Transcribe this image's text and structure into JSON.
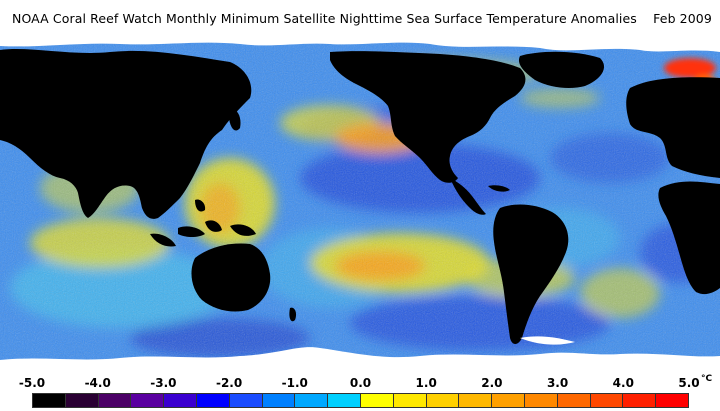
{
  "title": "NOAA Coral Reef Watch Monthly Minimum Satellite Nighttime Sea Surface Temperature Anomalies    Feb 2009",
  "colorbar": {
    "tick_labels": [
      "-5.0",
      "-4.0",
      "-3.0",
      "-2.0",
      "-1.0",
      "0.0",
      "1.0",
      "2.0",
      "3.0",
      "4.0",
      "5.0"
    ],
    "unit": "°C",
    "colors": [
      "#000000",
      "#2a0033",
      "#4b0066",
      "#5a00a0",
      "#3a00d0",
      "#0000ff",
      "#1a4cff",
      "#0080ff",
      "#00a8ff",
      "#00d0ff",
      "#ffff00",
      "#ffe800",
      "#ffd000",
      "#ffb800",
      "#ffa000",
      "#ff8800",
      "#ff6800",
      "#ff4800",
      "#ff2000",
      "#ff0000"
    ]
  },
  "map_colors": {
    "land": "#000000",
    "ice": "#ffffff",
    "ocean_base": "#3a8cf0",
    "deep_blue": "#1f4fe0",
    "cyan": "#3ec0f0",
    "yellow": "#e8e020",
    "orange": "#ff9a10",
    "red": "#ff3010"
  }
}
